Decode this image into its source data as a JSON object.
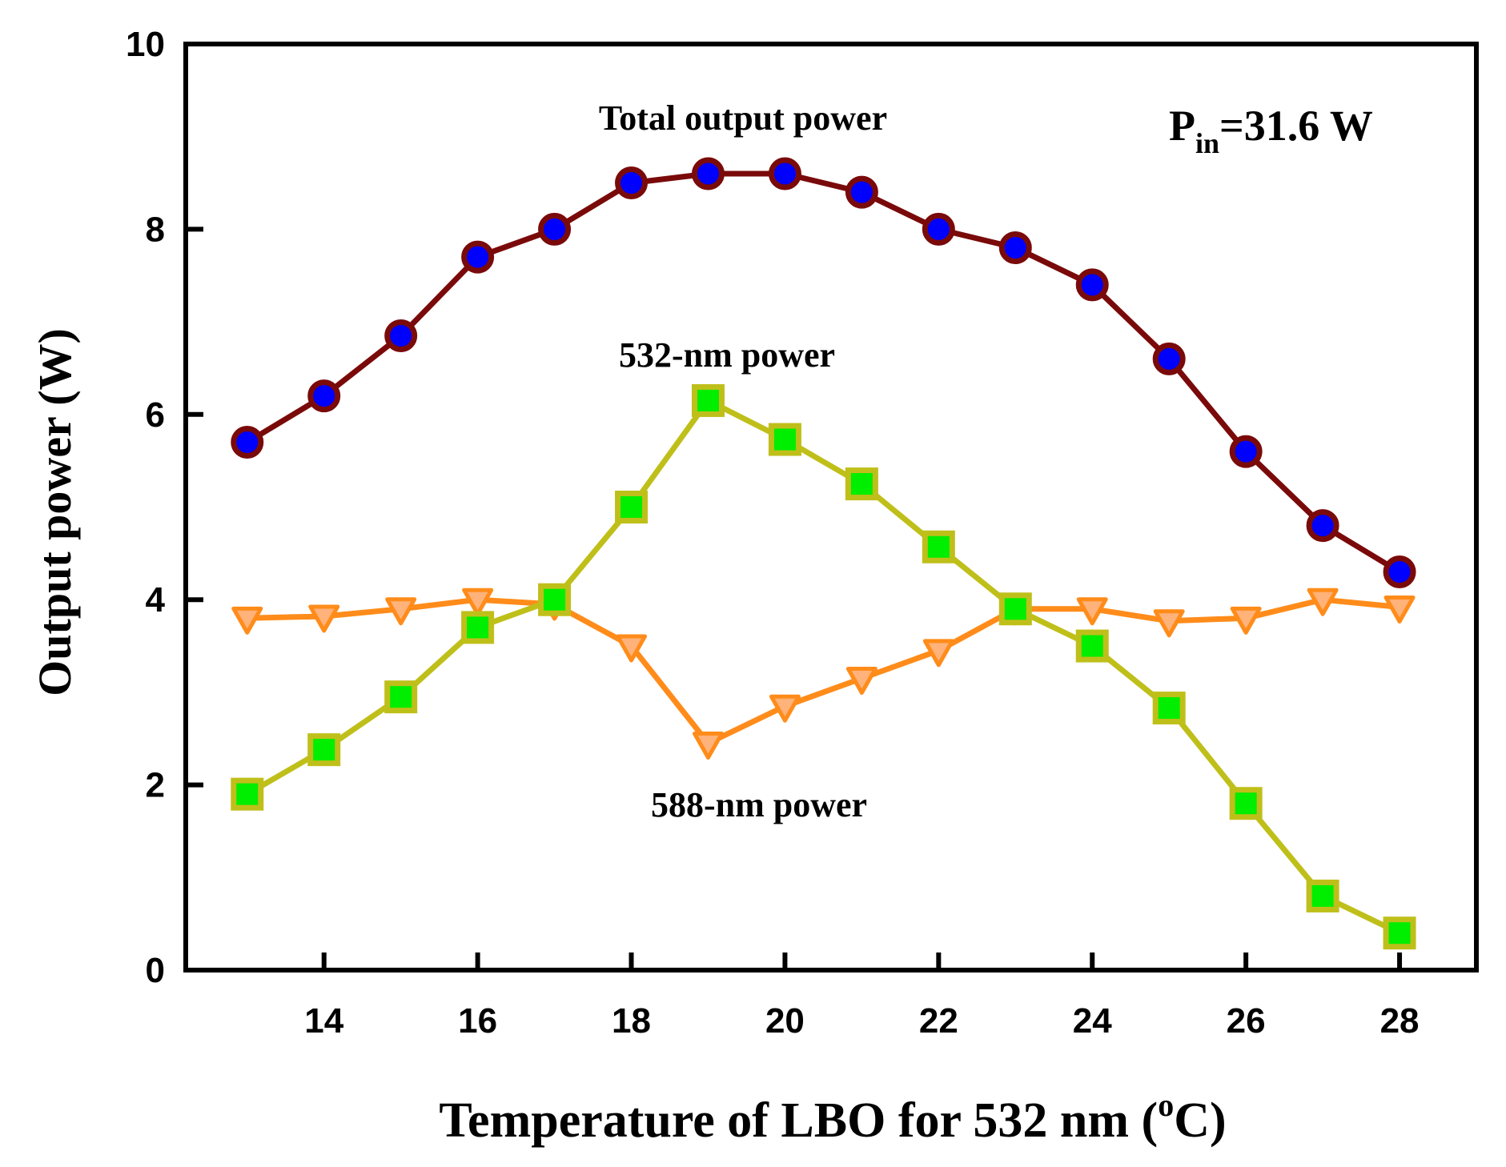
{
  "chart_data": {
    "type": "line",
    "title": "",
    "xlabel": "Temperature of LBO for 532 nm (",
    "xlabel_sup": "o",
    "xlabel_suffix": "C)",
    "ylabel": "Output power (W)",
    "xlim": [
      12.2,
      29.0
    ],
    "ylim": [
      0,
      10
    ],
    "xticks": [
      14,
      16,
      18,
      20,
      22,
      24,
      26,
      28
    ],
    "yticks": [
      0,
      2,
      4,
      6,
      8,
      10
    ],
    "grid": false,
    "x": [
      13,
      14,
      15,
      16,
      17,
      18,
      19,
      20,
      21,
      22,
      23,
      24,
      25,
      26,
      27,
      28
    ],
    "series": [
      {
        "name": "Total output power",
        "line_color": "#7a0a0a",
        "marker": "circle",
        "marker_fill": "#0000ff",
        "values": [
          5.7,
          6.2,
          6.85,
          7.7,
          8.0,
          8.5,
          8.6,
          8.6,
          8.4,
          8.0,
          7.8,
          7.4,
          6.6,
          5.6,
          4.8,
          4.3
        ]
      },
      {
        "name": "588-nm power",
        "line_color": "#ff8c1a",
        "marker": "triangle-down",
        "marker_fill": "#ffb27a",
        "values": [
          3.8,
          3.82,
          3.9,
          4.0,
          3.95,
          3.5,
          2.45,
          2.85,
          3.15,
          3.45,
          3.9,
          3.9,
          3.77,
          3.8,
          4.0,
          3.92
        ]
      },
      {
        "name": "532-nm power",
        "line_color": "#bfbf1a",
        "marker": "square",
        "marker_fill": "#00ee00",
        "values": [
          1.9,
          2.38,
          2.95,
          3.7,
          4.0,
          5.0,
          6.15,
          5.73,
          5.25,
          4.57,
          3.9,
          3.5,
          2.83,
          1.8,
          0.8,
          0.4
        ]
      }
    ],
    "annotations": {
      "total": "Total output power",
      "p532": "532-nm power",
      "p588": "588-nm power",
      "pin_main": "P",
      "pin_sub": "in",
      "pin_value": "=31.6 W"
    }
  }
}
